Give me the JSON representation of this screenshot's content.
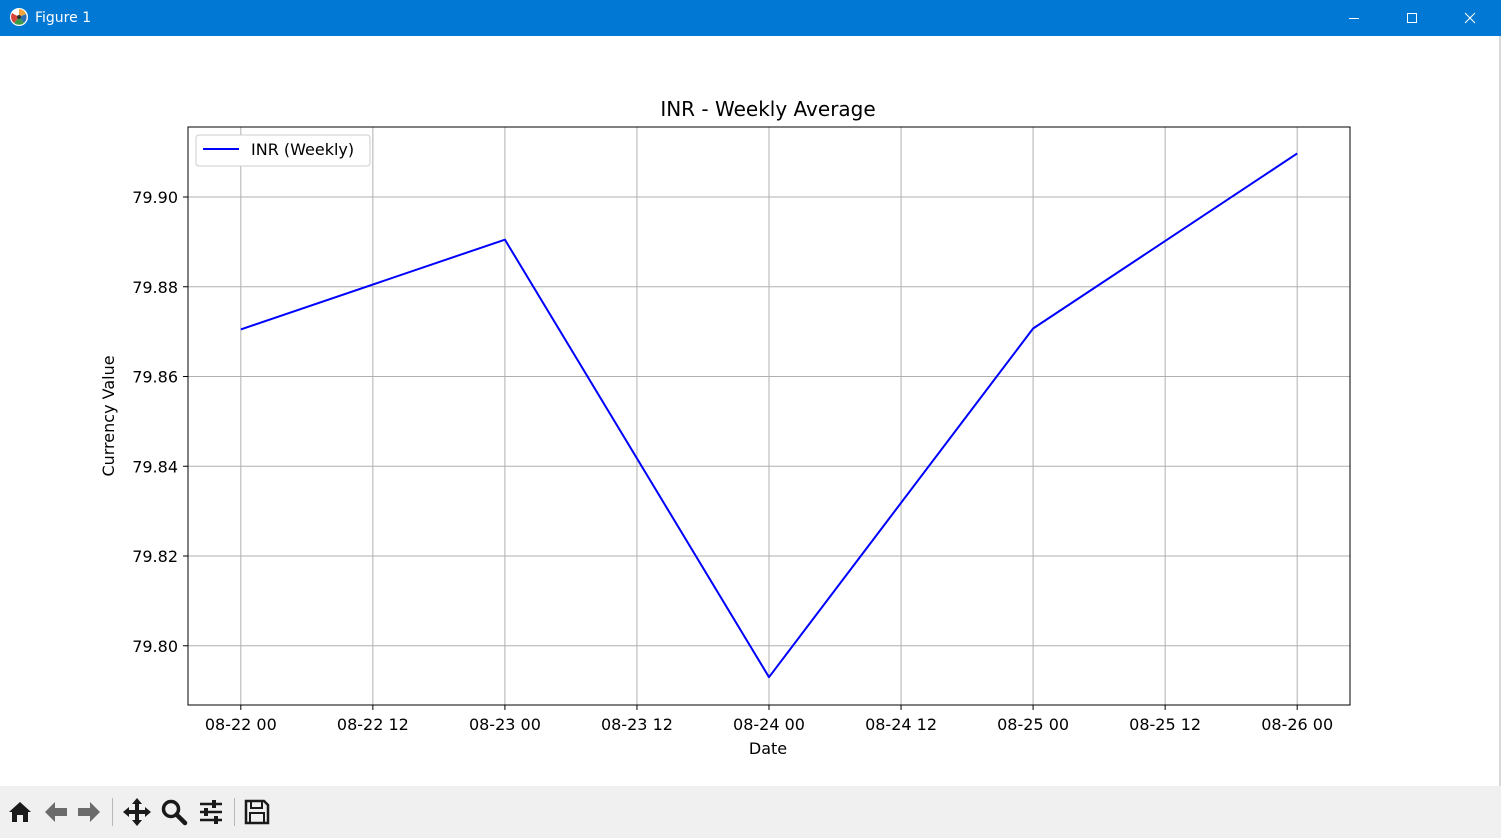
{
  "window": {
    "title": "Figure 1",
    "accent_color": "#0078d4",
    "icons": {
      "app": "matplotlib-logo-icon",
      "minimize": "minimize-icon",
      "maximize": "maximize-icon",
      "close": "close-icon"
    }
  },
  "toolbar": {
    "buttons": [
      {
        "name": "home-button",
        "icon": "home-icon"
      },
      {
        "name": "back-button",
        "icon": "arrow-left-icon"
      },
      {
        "name": "forward-button",
        "icon": "arrow-right-icon"
      },
      {
        "name": "pan-button",
        "icon": "move-icon"
      },
      {
        "name": "zoom-button",
        "icon": "magnifier-icon"
      },
      {
        "name": "configure-subplots-button",
        "icon": "sliders-icon"
      },
      {
        "name": "save-button",
        "icon": "floppy-disk-icon"
      }
    ]
  },
  "chart_data": {
    "type": "line",
    "title": "INR - Weekly Average",
    "xlabel": "Date",
    "ylabel": "Currency Value",
    "x": [
      "2022-08-22",
      "2022-08-23",
      "2022-08-24",
      "2022-08-25",
      "2022-08-26"
    ],
    "series": [
      {
        "name": "INR (Weekly)",
        "values": [
          79.8705,
          79.8905,
          79.793,
          79.8707,
          79.9097
        ],
        "color": "#0000ff"
      }
    ],
    "xlim": [
      "2022-08-21 19:12",
      "2022-08-26 04:48"
    ],
    "ylim": [
      79.7868,
      79.9156
    ],
    "xticks": [
      "08-22 00",
      "08-22 12",
      "08-23 00",
      "08-23 12",
      "08-24 00",
      "08-24 12",
      "08-25 00",
      "08-25 12",
      "08-26 00"
    ],
    "yticks": [
      79.8,
      79.82,
      79.84,
      79.86,
      79.88,
      79.9
    ],
    "ytick_labels": [
      "79.80",
      "79.82",
      "79.84",
      "79.86",
      "79.88",
      "79.90"
    ],
    "grid": true,
    "legend_position": "upper-left"
  }
}
